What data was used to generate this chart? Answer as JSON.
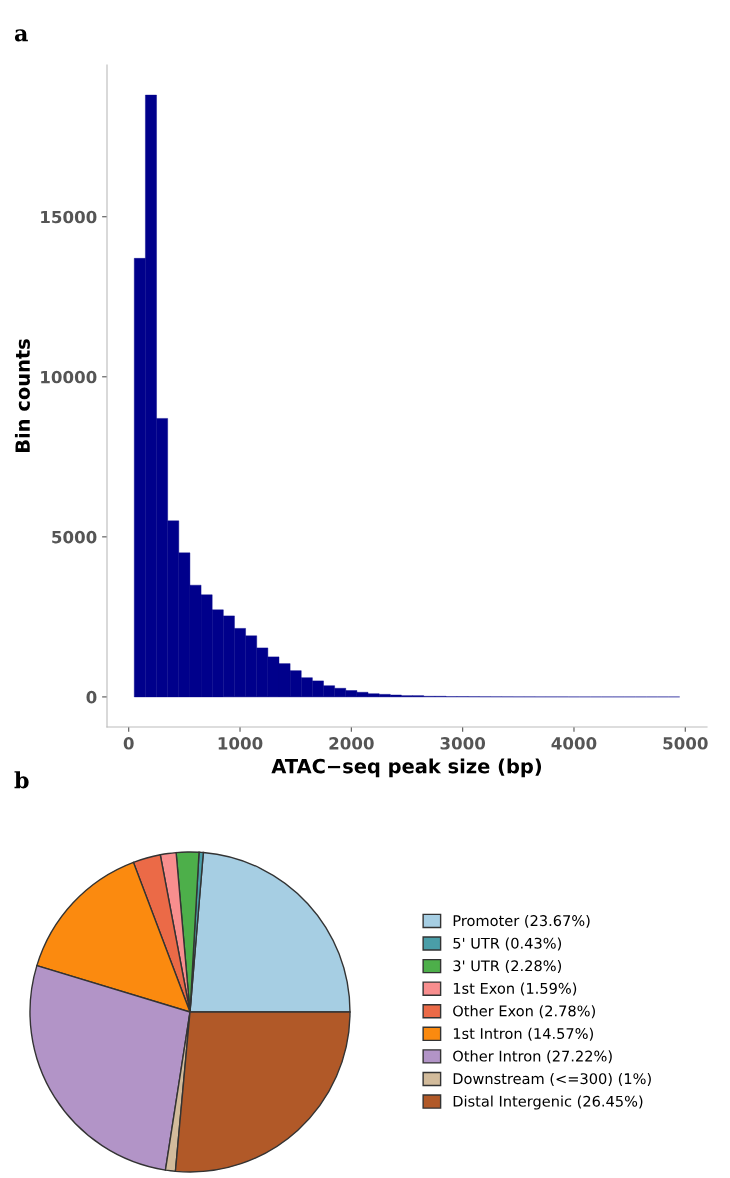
{
  "chart_data": [
    {
      "type": "histogram",
      "xlabel": "ATAC−seq peak size (bp)",
      "ylabel": "Bin counts",
      "annotations": [
        "a"
      ],
      "bins": [
        50,
        150,
        250,
        350,
        450,
        550,
        650,
        750,
        850,
        950,
        1050,
        1150,
        1250,
        1350,
        1450,
        1550,
        1650,
        1750,
        1850,
        1950,
        2050,
        2150,
        2250,
        2350,
        2450,
        2550,
        2650,
        2750,
        2850,
        2950,
        3050,
        3150,
        3250,
        3350,
        3450,
        3550,
        3650,
        3750,
        3850,
        3950,
        4050,
        4150,
        4250,
        4350,
        4450,
        4550,
        4650,
        4750,
        4850,
        4950
      ],
      "values": [
        13700,
        18800,
        8700,
        5500,
        4500,
        3490,
        3190,
        2720,
        2530,
        2140,
        1910,
        1530,
        1250,
        1040,
        820,
        600,
        500,
        350,
        270,
        200,
        145,
        100,
        80,
        60,
        40,
        40,
        20,
        20,
        10,
        10,
        8,
        6,
        5,
        4,
        3,
        3,
        2,
        2,
        2,
        1,
        1,
        1,
        1,
        1,
        1,
        1,
        1,
        1,
        1
      ],
      "color": "#00008b",
      "xlim": [
        -195,
        5195
      ],
      "ylim": [
        -940,
        19740
      ],
      "xticks": [
        0,
        1000,
        2000,
        3000,
        4000,
        5000
      ],
      "yticks": [
        0,
        5000,
        10000,
        15000
      ],
      "grid": false
    },
    {
      "type": "pie",
      "annotations": [
        "b"
      ],
      "legend": "right",
      "categories": [
        "Promoter (23.67%)",
        "5' UTR (0.43%)",
        "3' UTR (2.28%)",
        "1st Exon (1.59%)",
        "Other Exon (2.78%)",
        "1st Intron (14.57%)",
        "Other Intron (27.22%)",
        "Downstream (<=300) (1%)",
        "Distal Intergenic (26.45%)"
      ],
      "values": [
        23.67,
        0.43,
        2.28,
        1.59,
        2.78,
        14.57,
        27.22,
        1,
        26.45
      ],
      "colors": [
        "#a6cee3",
        "#4a9ea8",
        "#4daf4a",
        "#f88e8e",
        "#eb6a47",
        "#fb8a0f",
        "#b294c7",
        "#d2bb9b",
        "#b15928"
      ]
    }
  ]
}
